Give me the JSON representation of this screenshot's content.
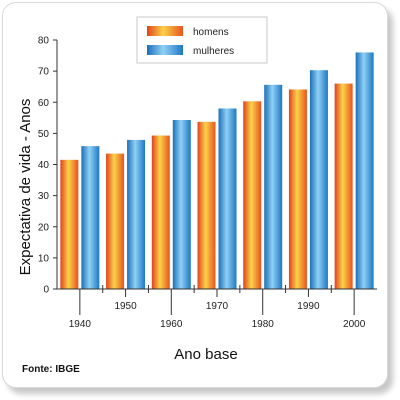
{
  "chart_data": {
    "type": "bar",
    "categories": [
      "1940",
      "1950",
      "1960",
      "1970",
      "1980",
      "1990",
      "2000"
    ],
    "series": [
      {
        "name": "homens",
        "values": [
          41.5,
          43.5,
          49.3,
          53.7,
          60.3,
          64.1,
          66.0
        ]
      },
      {
        "name": "mulheres",
        "values": [
          45.9,
          47.9,
          54.3,
          58.0,
          65.6,
          70.3,
          76.0
        ]
      }
    ],
    "title": "",
    "xlabel": "Ano base",
    "ylabel": "Expectativa de vida - Anos",
    "ylim": [
      0,
      80
    ],
    "yticks": [
      "0",
      "10",
      "20",
      "30",
      "40",
      "50",
      "60",
      "70",
      "80"
    ],
    "grid": false,
    "legend_position": "top-center",
    "colors": {
      "homens": "#f08a1c",
      "mulheres": "#3a9ad6"
    }
  },
  "source": "Fonte: IBGE"
}
